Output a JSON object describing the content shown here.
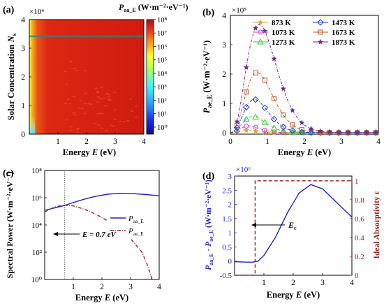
{
  "panels": [
    {
      "id": "a",
      "label": "(a)",
      "type": "heatmap",
      "xlabel_main": "Energy",
      "xlabel_var": "E",
      "xlabel_unit": "(eV)",
      "ylabel_main": "Solar Concentration",
      "ylabel_var": "N",
      "ylabel_sub": "s",
      "y_exponent": "×10⁴",
      "xticks": [
        "1",
        "2",
        "3",
        "4"
      ],
      "yticks": [
        "0",
        "1",
        "2",
        "3",
        "4"
      ],
      "colorbar_title": "P",
      "colorbar_title_sub": "aa_E",
      "colorbar_unit": "(W·m⁻²·eV⁻¹)",
      "colorbar_ticks": [
        "10⁰",
        "10¹",
        "10²",
        "10³",
        "10⁴",
        "10⁵",
        "10⁶",
        "10⁷",
        "10⁸"
      ]
    },
    {
      "id": "b",
      "label": "(b)",
      "type": "line",
      "y_exponent": "×10⁵",
      "ylabel_main": "P",
      "ylabel_sub": "ae_E",
      "ylabel_unit": "(W·m⁻²·eV⁻¹)",
      "xlabel_main": "Energy",
      "xlabel_var": "E",
      "xlabel_unit": "(eV)",
      "xticks": [
        "0",
        "1",
        "2",
        "3",
        "4"
      ],
      "yticks": [
        "0",
        "1",
        "2",
        "3",
        "4"
      ],
      "legend": [
        "873 K",
        "1473 K",
        "1073 K",
        "1673 K",
        "1273 K",
        "1873 K"
      ]
    },
    {
      "id": "c",
      "label": "(c)",
      "type": "line",
      "ylabel": "Spectral Power (W·m⁻²·eV⁻¹)",
      "xlabel_main": "Energy",
      "xlabel_var": "E",
      "xlabel_unit": "(eV)",
      "xticks": [
        "1",
        "2",
        "3",
        "4"
      ],
      "yticks": [
        "10⁰",
        "10²",
        "10⁴",
        "10⁶",
        "10⁸"
      ],
      "legend": [
        {
          "main": "P",
          "sub": "aa_E"
        },
        {
          "main": "P",
          "sub": "ae_E"
        }
      ],
      "annotation": "E = 0.7 eV"
    },
    {
      "id": "d",
      "label": "(d)",
      "type": "line",
      "y_exponent": "×10⁶",
      "ylabel_left_p1": "P",
      "ylabel_left_s1": "aa_E",
      "ylabel_left_mid": " - P",
      "ylabel_left_s2": "ae_E",
      "ylabel_left_unit": " (W·m⁻²·eV⁻¹)",
      "ylabel_right": "Ideal Absorptivity ε",
      "xlabel_main": "Energy",
      "xlabel_var": "E",
      "xlabel_unit": "(eV)",
      "xticks": [
        "1",
        "2",
        "3",
        "4"
      ],
      "yticks_left": [
        "-0.5",
        "0",
        "0.5",
        "1",
        "1.5",
        "2",
        "2.5",
        "3"
      ],
      "yticks_right": [
        "0",
        "0.2",
        "0.4",
        "0.6",
        "0.8",
        "1"
      ],
      "annotation_main": "E",
      "annotation_sub": "c"
    }
  ],
  "colors": {
    "blue": "#1f1fd0",
    "darkred": "#9b2222",
    "axis": "#000000",
    "s873": "#e6a21f",
    "s1073": "#c042c8",
    "s1273": "#33cc33",
    "s1473": "#1c3ed6",
    "s1673": "#b4532a",
    "s1873": "#6b2e8c"
  },
  "chart_data": [
    {
      "panel": "a",
      "type": "heatmap",
      "x": {
        "label": "Energy E (eV)",
        "range": [
          0,
          4
        ]
      },
      "y": {
        "label": "Solar Concentration Ns",
        "range": [
          0,
          40000
        ]
      },
      "colorbar": {
        "label": "Paa_E (W·m⁻²·eV⁻¹)",
        "scale": "log",
        "range": [
          0.3,
          100000000
        ]
      }
    },
    {
      "panel": "b",
      "type": "line",
      "x": {
        "label": "Energy E (eV)",
        "range": [
          0,
          4
        ]
      },
      "y": {
        "label": "Pae_E (W·m⁻²·eV⁻¹)",
        "range": [
          -5000,
          400000
        ]
      },
      "series": [
        {
          "name": "873 K",
          "color_key": "s873",
          "marker": "star",
          "peak_x": 0.45,
          "peak": 8000,
          "width": 0.35
        },
        {
          "name": "1073 K",
          "color_key": "s1073",
          "marker": "circle",
          "peak_x": 0.5,
          "peak": 23000,
          "width": 0.38
        },
        {
          "name": "1273 K",
          "color_key": "s1273",
          "marker": "triangle",
          "peak_x": 0.6,
          "peak": 55000,
          "width": 0.4
        },
        {
          "name": "1473 K",
          "color_key": "s1473",
          "marker": "diamond",
          "peak_x": 0.65,
          "peak": 113000,
          "width": 0.42
        },
        {
          "name": "1673 K",
          "color_key": "s1673",
          "marker": "square",
          "peak_x": 0.72,
          "peak": 205000,
          "width": 0.45
        },
        {
          "name": "1873 K",
          "color_key": "s1873",
          "marker": "star",
          "peak_x": 0.78,
          "peak": 368000,
          "width": 0.48
        }
      ]
    },
    {
      "panel": "c",
      "type": "line",
      "x": {
        "label": "Energy E (eV)",
        "range": [
          0,
          4
        ]
      },
      "y": {
        "label": "Spectral Power (W·m⁻²·eV⁻¹)",
        "scale": "log",
        "range": [
          1,
          100000000
        ]
      },
      "series": [
        {
          "name": "Paa_E",
          "color_key": "blue",
          "style": "solid",
          "x": [
            0.0,
            0.2,
            0.4,
            0.6,
            0.8,
            1.0,
            1.4,
            1.8,
            2.2,
            2.6,
            3.0,
            3.4,
            4.0
          ],
          "y": [
            120000,
            150000,
            190000,
            240000,
            320000,
            450000,
            800000,
            1300000,
            1800000,
            2100000,
            2050000,
            1800000,
            1400000
          ]
        },
        {
          "name": "Pae_E",
          "color_key": "darkred",
          "style": "dash-dot",
          "x": [
            0.0,
            0.2,
            0.4,
            0.6,
            0.8,
            1.0,
            1.4,
            1.8,
            2.2,
            2.6,
            3.0,
            3.4,
            3.6,
            3.75
          ],
          "y": [
            90000,
            150000,
            220000,
            270000,
            280000,
            250000,
            140000,
            60000,
            20000,
            5000,
            1000,
            100,
            10,
            1
          ]
        }
      ],
      "vline": {
        "x": 0.7,
        "style": "dotted",
        "label": "E = 0.7 eV"
      }
    },
    {
      "panel": "d",
      "type": "line",
      "x": {
        "label": "Energy E (eV)",
        "range": [
          0,
          4
        ]
      },
      "y_left": {
        "label": "Paa_E - Pae_E (W·m⁻²·eV⁻¹)",
        "range": [
          -500000,
          3000000
        ]
      },
      "y_right": {
        "label": "Ideal Absorptivity ε",
        "range": [
          0,
          1.05
        ]
      },
      "series": [
        {
          "name": "Paa_E - Pae_E",
          "axis": "left",
          "color_key": "blue",
          "style": "solid",
          "x": [
            0.0,
            0.3,
            0.6,
            0.8,
            1.0,
            1.4,
            1.8,
            2.2,
            2.6,
            3.0,
            3.4,
            3.8,
            4.0
          ],
          "y": [
            -20000,
            -35000,
            -40000,
            0,
            200000,
            850000,
            1700000,
            2400000,
            2700000,
            2550000,
            2150000,
            1750000,
            1550000
          ]
        },
        {
          "name": "Ideal Absorptivity",
          "axis": "right",
          "color_key": "darkred",
          "style": "dashed",
          "x": [
            0.0,
            0.7,
            0.7,
            4.0
          ],
          "y": [
            0.0,
            0.0,
            1.0,
            1.0
          ]
        }
      ],
      "annotation": {
        "label": "Ec",
        "x": 0.7
      }
    }
  ]
}
